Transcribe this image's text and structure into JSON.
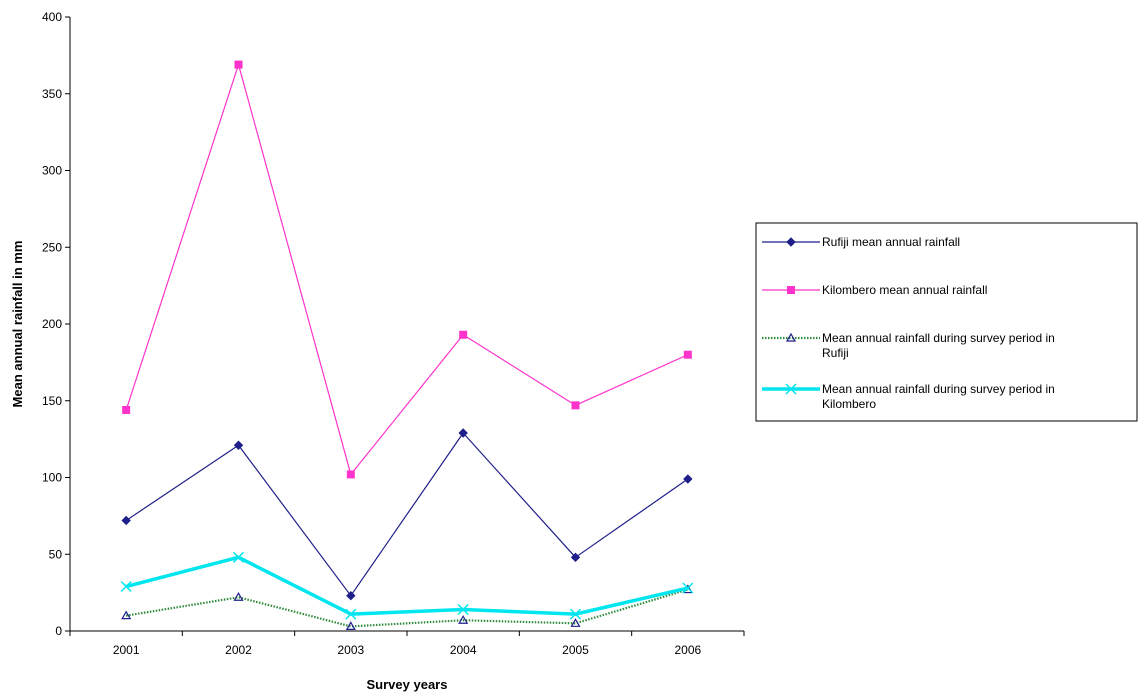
{
  "chart_data": {
    "type": "line",
    "title": "",
    "xlabel": "Survey years",
    "ylabel": "Mean annual rainfall in mm",
    "categories": [
      "2001",
      "2002",
      "2003",
      "2004",
      "2005",
      "2006"
    ],
    "ylim": [
      0,
      400
    ],
    "yticks": [
      0,
      50,
      100,
      150,
      200,
      250,
      300,
      350,
      400
    ],
    "grid": false,
    "legend_position": "right",
    "series": [
      {
        "name": "Rufiji mean annual rainfall",
        "values": [
          72,
          121,
          23,
          129,
          48,
          99
        ],
        "color": "#1f1f8a",
        "marker": "diamond",
        "style": "solid"
      },
      {
        "name": "Kilombero mean annual rainfall",
        "values": [
          144,
          369,
          102,
          193,
          147,
          180
        ],
        "color": "#ff33cc",
        "marker": "square",
        "style": "solid"
      },
      {
        "name": "Mean annual rainfall during survey period in Rufiji",
        "legend_lines": [
          "Mean annual rainfall during survey period in",
          "Rufiji"
        ],
        "values": [
          10,
          22,
          3,
          7,
          5,
          27
        ],
        "color": "#2e8b3a",
        "marker": "triangle",
        "style": "dotted"
      },
      {
        "name": "Mean annual rainfall during survey period in Kilombero",
        "legend_lines": [
          "Mean annual rainfall during survey period in",
          "Kilombero"
        ],
        "values": [
          29,
          48,
          11,
          14,
          11,
          28
        ],
        "color": "#00e5ee",
        "marker": "x",
        "style": "thick"
      }
    ]
  }
}
